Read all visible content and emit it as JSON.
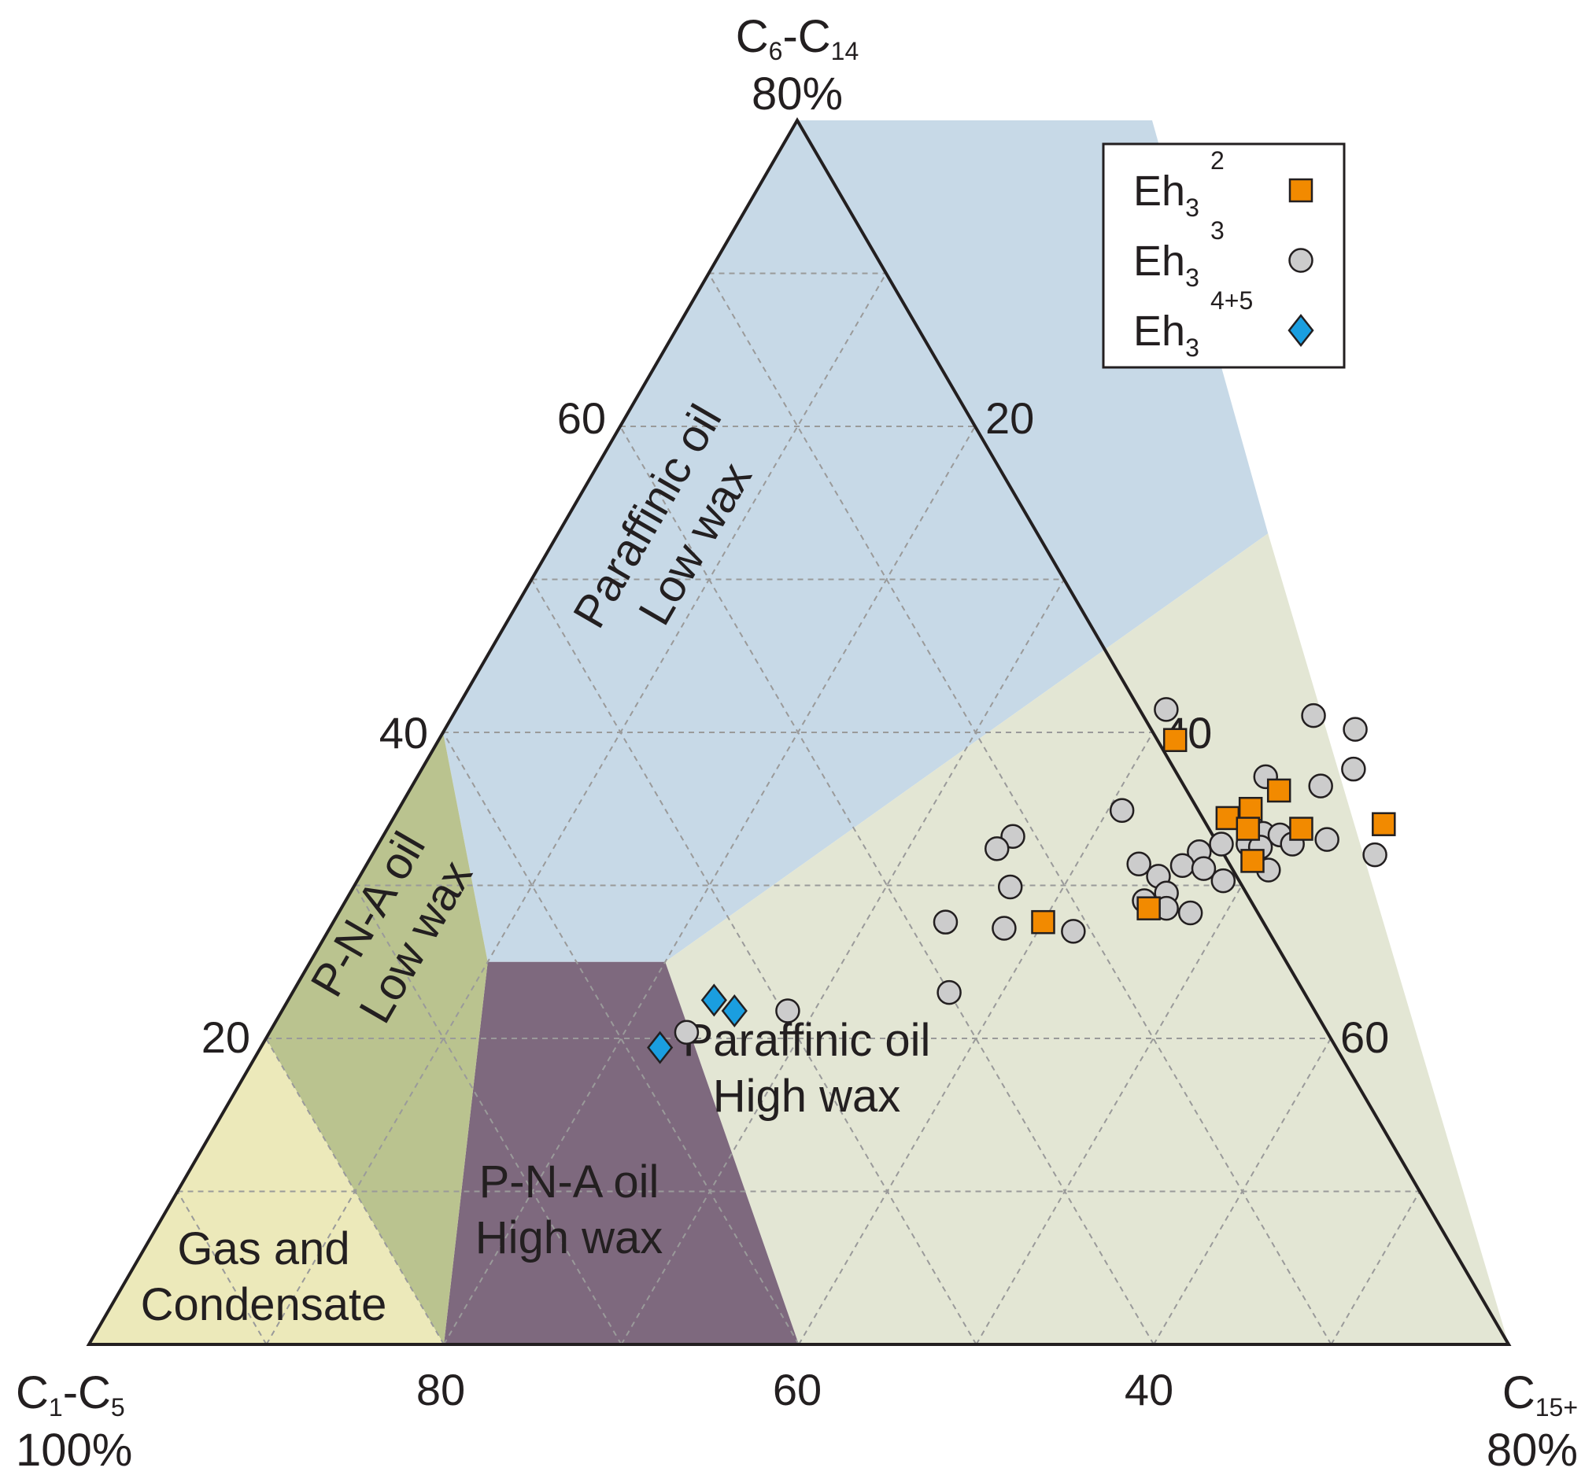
{
  "chart_data": {
    "type": "scatter",
    "subtype": "ternary",
    "title": "",
    "axes": {
      "left_apex": {
        "name": "C",
        "sub1": "1",
        "sep": "-C",
        "sub2": "5",
        "pct": "100%"
      },
      "top_apex": {
        "name": "C",
        "sub1": "6",
        "sep": "-C",
        "sub2": "14",
        "pct": "80%"
      },
      "right_apex": {
        "name": "C",
        "sub1": "15+",
        "sep": "",
        "sub2": "",
        "pct": "80%"
      },
      "bottom_ticks": [
        "80",
        "60",
        "40"
      ],
      "left_ticks": [
        "20",
        "40",
        "60"
      ],
      "right_ticks": [
        "20",
        "40",
        "60"
      ]
    },
    "regions": [
      {
        "id": "gas",
        "line1": "Gas and",
        "line2": "Condensate",
        "color": "#ece9ba"
      },
      {
        "id": "pna-low",
        "line1": "P-N-A oil",
        "line2": "Low wax",
        "color": "#bac38f"
      },
      {
        "id": "pna-high",
        "line1": "P-N-A oil",
        "line2": "High wax",
        "color": "#7e697e"
      },
      {
        "id": "par-low",
        "line1": "Paraffinic oil",
        "line2": "Low wax",
        "color": "#c7d9e7"
      },
      {
        "id": "par-high",
        "line1": "Paraffinic oil",
        "line2": "High wax",
        "color": "#e3e6d4"
      }
    ],
    "legend": {
      "placement": "top-right"
    },
    "grid": true,
    "series": [
      {
        "name": "Eh3 2",
        "base": "Eh",
        "sub": "3",
        "sup": "2",
        "marker": "square",
        "color": "#f28a00",
        "points": [
          {
            "c15": 41.5,
            "c614": 39.5
          },
          {
            "c15": 47.0,
            "c614": 34.4
          },
          {
            "c15": 48.0,
            "c614": 35.0
          },
          {
            "c15": 48.5,
            "c614": 33.7
          },
          {
            "c15": 49.0,
            "c614": 36.2
          },
          {
            "c15": 49.8,
            "c614": 31.6
          },
          {
            "c15": 51.5,
            "c614": 33.7
          },
          {
            "c15": 56.0,
            "c614": 34.0
          },
          {
            "c15": 45.5,
            "c614": 28.5
          },
          {
            "c15": 40.0,
            "c614": 27.6
          }
        ]
      },
      {
        "name": "Eh3 3",
        "base": "Eh",
        "sub": "3",
        "sup": "3",
        "marker": "circle",
        "color": "#cccccc",
        "points": [
          {
            "c15": 40.0,
            "c614": 41.5
          },
          {
            "c15": 48.5,
            "c614": 41.1
          },
          {
            "c15": 51.3,
            "c614": 40.2
          },
          {
            "c15": 47.8,
            "c614": 37.1
          },
          {
            "c15": 52.5,
            "c614": 37.6
          },
          {
            "c15": 51.2,
            "c614": 36.5
          },
          {
            "c15": 40.8,
            "c614": 34.9
          },
          {
            "c15": 48.5,
            "c614": 34.0
          },
          {
            "c15": 49.5,
            "c614": 33.4
          },
          {
            "c15": 50.5,
            "c614": 33.3
          },
          {
            "c15": 47.5,
            "c614": 32.7
          },
          {
            "c15": 46.5,
            "c614": 32.2
          },
          {
            "c15": 49.0,
            "c614": 32.7
          },
          {
            "c15": 49.8,
            "c614": 32.5
          },
          {
            "c15": 51.5,
            "c614": 32.7
          },
          {
            "c15": 53.3,
            "c614": 33.0
          },
          {
            "c15": 56.5,
            "c614": 32.0
          },
          {
            "c15": 35.5,
            "c614": 33.2
          },
          {
            "c15": 35.0,
            "c614": 32.4
          },
          {
            "c15": 37.0,
            "c614": 29.9
          },
          {
            "c15": 43.5,
            "c614": 31.4
          },
          {
            "c15": 45.0,
            "c614": 30.6
          },
          {
            "c15": 46.0,
            "c614": 31.3
          },
          {
            "c15": 47.3,
            "c614": 31.1
          },
          {
            "c15": 48.8,
            "c614": 30.3
          },
          {
            "c15": 51.0,
            "c614": 31.0
          },
          {
            "c15": 46.0,
            "c614": 29.5
          },
          {
            "c15": 45.0,
            "c614": 29.0
          },
          {
            "c15": 46.5,
            "c614": 28.5
          },
          {
            "c15": 48.0,
            "c614": 28.2
          },
          {
            "c15": 34.5,
            "c614": 27.6
          },
          {
            "c15": 38.0,
            "c614": 27.2
          },
          {
            "c15": 42.0,
            "c614": 27.0
          },
          {
            "c15": 37.0,
            "c614": 23.0
          },
          {
            "c15": 28.5,
            "c614": 21.8
          },
          {
            "c15": 23.5,
            "c614": 20.4
          }
        ]
      },
      {
        "name": "Eh3 4+5",
        "base": "Eh",
        "sub": "3",
        "sup": "4+5",
        "marker": "diamond",
        "color": "#1a9ee0",
        "points": [
          {
            "c15": 24.0,
            "c614": 22.5
          },
          {
            "c15": 25.5,
            "c614": 21.8
          },
          {
            "c15": 22.5,
            "c614": 19.4
          }
        ]
      }
    ]
  }
}
